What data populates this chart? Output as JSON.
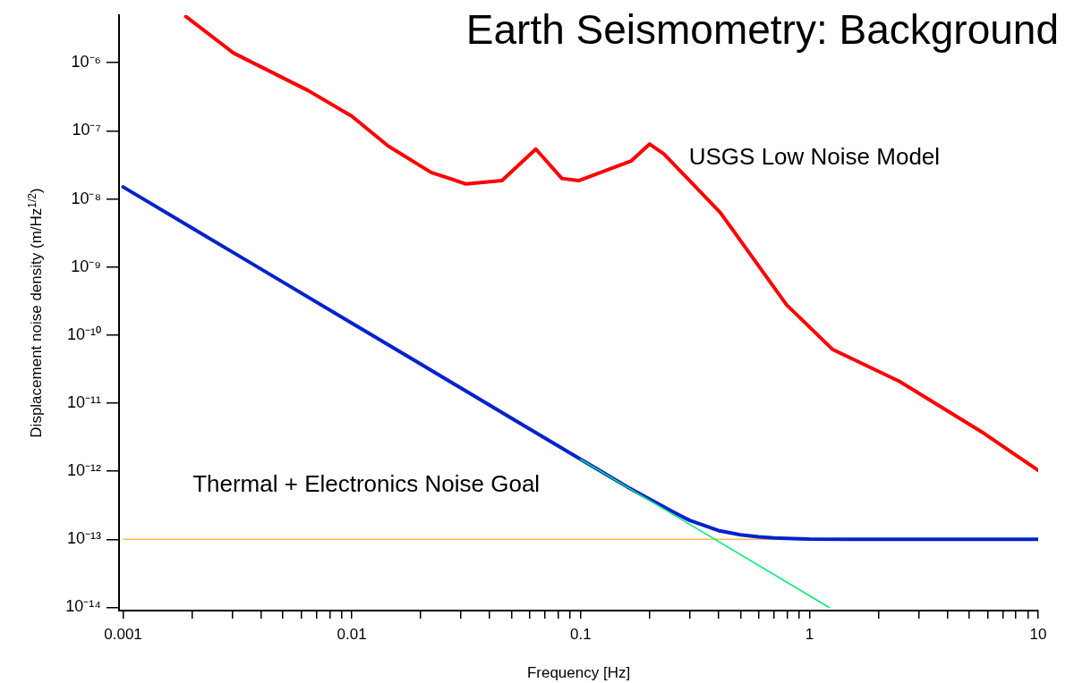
{
  "chart_data": {
    "type": "line",
    "title": "Earth Seismometry: Background",
    "xlabel": "Frequency [Hz]",
    "ylabel": "Displacement noise density (m/Hz$^{1/2}$)",
    "log": "xy",
    "marker": "none",
    "xlim": [
      0.00096,
      10
    ],
    "ylim": [
      9e-15,
      5e-06
    ],
    "xticks": [
      {
        "value": 0.001,
        "label": "0.001"
      },
      {
        "value": 0.002,
        "label": null
      },
      {
        "value": 0.003,
        "label": null
      },
      {
        "value": 0.004,
        "label": null
      },
      {
        "value": 0.005,
        "label": null
      },
      {
        "value": 0.006,
        "label": null
      },
      {
        "value": 0.007,
        "label": null
      },
      {
        "value": 0.008,
        "label": null
      },
      {
        "value": 0.009,
        "label": null
      },
      {
        "value": 0.01,
        "label": "0.01"
      },
      {
        "value": 0.02,
        "label": null
      },
      {
        "value": 0.03,
        "label": null
      },
      {
        "value": 0.04,
        "label": null
      },
      {
        "value": 0.05,
        "label": null
      },
      {
        "value": 0.06,
        "label": null
      },
      {
        "value": 0.07,
        "label": null
      },
      {
        "value": 0.08,
        "label": null
      },
      {
        "value": 0.09,
        "label": null
      },
      {
        "value": 0.1,
        "label": "0.1"
      },
      {
        "value": 0.2,
        "label": null
      },
      {
        "value": 0.3,
        "label": null
      },
      {
        "value": 0.4,
        "label": null
      },
      {
        "value": 0.5,
        "label": null
      },
      {
        "value": 0.6,
        "label": null
      },
      {
        "value": 0.7,
        "label": null
      },
      {
        "value": 0.8,
        "label": null
      },
      {
        "value": 0.9,
        "label": null
      },
      {
        "value": 1,
        "label": "1"
      },
      {
        "value": 2,
        "label": null
      },
      {
        "value": 3,
        "label": null
      },
      {
        "value": 4,
        "label": null
      },
      {
        "value": 5,
        "label": null
      },
      {
        "value": 6,
        "label": null
      },
      {
        "value": 7,
        "label": null
      },
      {
        "value": 8,
        "label": null
      },
      {
        "value": 9,
        "label": null
      },
      {
        "value": 10,
        "label": "10"
      }
    ],
    "yticks": [
      {
        "value": 1e-14,
        "label": "10⁻¹⁴"
      },
      {
        "value": 1e-13,
        "label": "10⁻¹³"
      },
      {
        "value": 1e-12,
        "label": "10⁻¹²"
      },
      {
        "value": 1e-11,
        "label": "10⁻¹¹"
      },
      {
        "value": 1e-10,
        "label": "10⁻¹⁰"
      },
      {
        "value": 1e-09,
        "label": "10⁻⁹"
      },
      {
        "value": 1e-08,
        "label": "10⁻⁸"
      },
      {
        "value": 1e-07,
        "label": "10⁻⁷"
      },
      {
        "value": 1e-06,
        "label": "10⁻⁶"
      }
    ],
    "series": [
      {
        "name": "USGS Low Noise Model",
        "color": "#ff0000",
        "x": [
          0.00188,
          0.00303,
          0.00645,
          0.01,
          0.0144,
          0.0222,
          0.0316,
          0.0453,
          0.0637,
          0.0828,
          0.098,
          0.166,
          0.2,
          0.231,
          0.408,
          0.794,
          1.26,
          2.47,
          5.8,
          10
        ],
        "values": [
          4.8e-06,
          1.4e-06,
          3.9e-07,
          1.64e-07,
          6e-08,
          2.45e-08,
          1.66e-08,
          1.86e-08,
          5.4e-08,
          2e-08,
          1.86e-08,
          3.6e-08,
          6.4e-08,
          4.6e-08,
          6.3e-09,
          2.8e-10,
          6.2e-11,
          2.1e-11,
          3.6e-12,
          1.03e-12
        ]
      },
      {
        "color": "#00ee77",
        "x": [
          0.1,
          1.22
        ],
        "values": [
          1.5e-12,
          1e-14
        ]
      },
      {
        "name": "Thermal + Electronics Noise Goal",
        "color": "#0022cc",
        "x": [
          0.001,
          0.002,
          0.005,
          0.01,
          0.02,
          0.05,
          0.1,
          0.13,
          0.16,
          0.2,
          0.25,
          0.3,
          0.4,
          0.5,
          0.6,
          0.7,
          0.85,
          1,
          1.5,
          2,
          3,
          5,
          10
        ],
        "values": [
          1.5e-08,
          3.75e-09,
          6e-10,
          1.5e-10,
          3.75e-11,
          6e-12,
          1.5e-12,
          8.9e-13,
          5.9e-13,
          3.9e-13,
          2.6e-13,
          1.9e-13,
          1.35e-13,
          1.17e-13,
          1.09e-13,
          1.05e-13,
          1.03e-13,
          1.01e-13,
          1e-13,
          1e-13,
          1e-13,
          1e-13,
          1e-13
        ]
      }
    ],
    "ref_lines": [
      {
        "axis": "y",
        "value": 1e-13,
        "color": "#ffb84d"
      }
    ]
  }
}
